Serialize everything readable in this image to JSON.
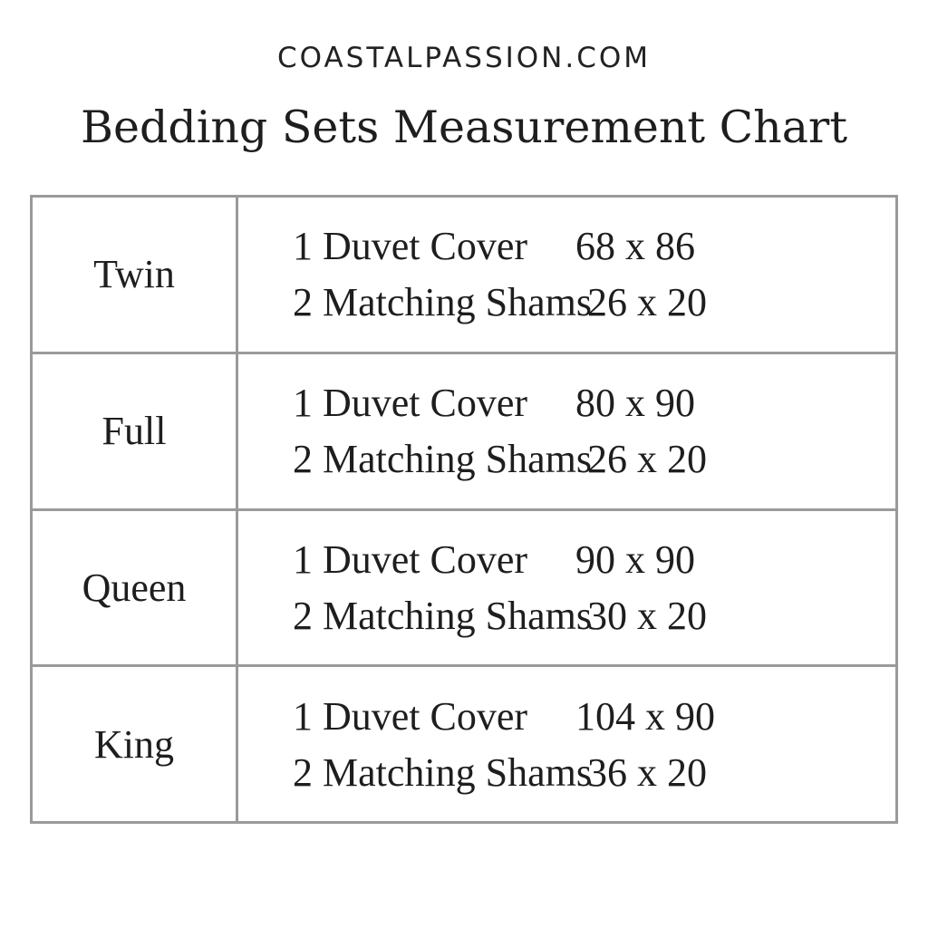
{
  "site": "COASTALPASSION.COM",
  "title": "Bedding Sets Measurement Chart",
  "rows": [
    {
      "size": "Twin",
      "items": [
        {
          "label": "1 Duvet Cover",
          "dims": "68 x 86"
        },
        {
          "label": "2 Matching Shams",
          "dims": "26 x 20"
        }
      ]
    },
    {
      "size": "Full",
      "items": [
        {
          "label": "1 Duvet Cover",
          "dims": "80 x 90"
        },
        {
          "label": "2 Matching Shams",
          "dims": "26 x 20"
        }
      ]
    },
    {
      "size": "Queen",
      "items": [
        {
          "label": "1 Duvet Cover",
          "dims": "90 x 90"
        },
        {
          "label": "2 Matching Shams",
          "dims": "30 x 20"
        }
      ]
    },
    {
      "size": "King",
      "items": [
        {
          "label": "1 Duvet Cover",
          "dims": "104 x 90"
        },
        {
          "label": "2 Matching Shams",
          "dims": "36 x 20"
        }
      ]
    }
  ]
}
